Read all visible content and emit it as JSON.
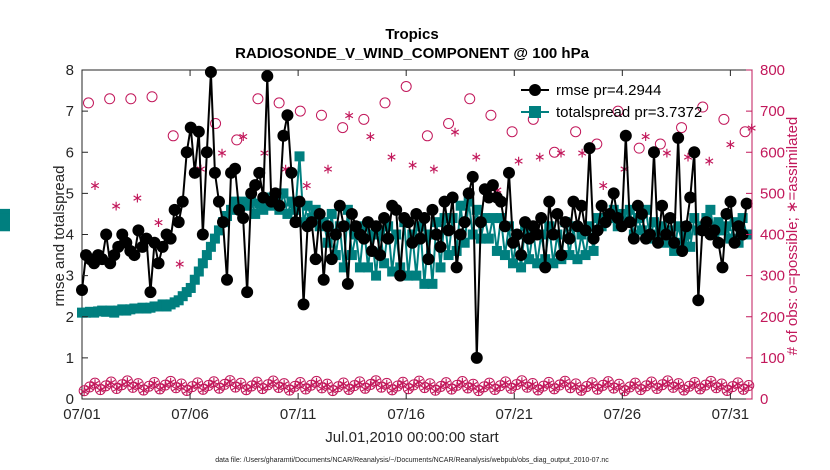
{
  "chart_data": {
    "type": "line",
    "title": "Tropics",
    "subtitle": "RADIOSONDE_V_WIND_COMPONENT @ 100 hPa",
    "xlabel": "Jul.01,2010 00:00:00 start",
    "ylabel": "rmse and totalspread",
    "y2label": "# of obs: o=possible; ∗=assimilated",
    "xlim": [
      0,
      31
    ],
    "ylim": [
      0,
      8
    ],
    "y2lim": [
      0,
      800
    ],
    "xticks": [
      0,
      5,
      10,
      15,
      20,
      25,
      30
    ],
    "xtick_labels": [
      "07/01",
      "07/06",
      "07/11",
      "07/16",
      "07/21",
      "07/26",
      "07/31"
    ],
    "yticks": [
      0,
      1,
      2,
      3,
      4,
      5,
      6,
      7,
      8
    ],
    "y2ticks": [
      0,
      100,
      200,
      300,
      400,
      500,
      600,
      700,
      800
    ],
    "footer": "data file: /Users/gharamti/Documents/NCAR/Reanalysis/~/Documents/NCAR/Reanalysis/webpub/obs_diag_output_2010-07.nc",
    "legend": [
      "rmse pr=4.2944",
      "totalspread pr=3.7372"
    ],
    "colors": {
      "rmse": "#000000",
      "spread": "#007f7f",
      "obs": "#c2185b"
    },
    "rmse": [
      2.65,
      3.5,
      3.4,
      3.3,
      3.5,
      3.4,
      4.0,
      3.3,
      3.5,
      3.7,
      4.0,
      3.8,
      3.6,
      3.5,
      4.1,
      3.7,
      3.9,
      2.6,
      3.8,
      3.3,
      3.7,
      4.0,
      3.9,
      4.6,
      4.3,
      4.8,
      6.0,
      6.6,
      5.5,
      6.5,
      4.0,
      6.0,
      7.95,
      5.5,
      4.8,
      4.3,
      2.9,
      5.5,
      5.6,
      4.6,
      4.4,
      2.6,
      5.0,
      5.2,
      5.5,
      4.9,
      7.85,
      4.8,
      5.0,
      4.7,
      6.4,
      6.9,
      5.5,
      4.3,
      4.8,
      2.3,
      4.2,
      4.3,
      3.4,
      4.5,
      2.9,
      4.2,
      3.4,
      4.0,
      4.7,
      4.2,
      2.8,
      4.5,
      4.2,
      4.0,
      3.9,
      4.3,
      3.6,
      4.2,
      3.5,
      4.4,
      3.9,
      4.7,
      4.6,
      3.0,
      4.4,
      4.3,
      3.8,
      4.5,
      3.9,
      4.4,
      3.4,
      4.6,
      4.0,
      3.7,
      4.8,
      4.1,
      4.9,
      3.2,
      4.0,
      4.3,
      5.0,
      5.4,
      1.0,
      4.3,
      5.1,
      4.9,
      5.2,
      4.9,
      4.8,
      4.2,
      5.5,
      3.8,
      4.0,
      3.5,
      4.3,
      3.9,
      4.2,
      4.0,
      4.4,
      3.2,
      4.8,
      4.0,
      4.5,
      3.5,
      4.3,
      3.9,
      4.8,
      4.2,
      4.7,
      4.1,
      6.1,
      3.9,
      4.1,
      4.7,
      4.3,
      4.5,
      5.0,
      4.4,
      4.2,
      6.4,
      4.3,
      3.9,
      4.7,
      4.5,
      3.9,
      4.0,
      6.0,
      3.8,
      4.7,
      4.0,
      4.4,
      3.8,
      6.35,
      3.6,
      4.2,
      4.9,
      6.0,
      2.4,
      4.1,
      4.3,
      4.0,
      4.1,
      3.8,
      3.2,
      4.5,
      4.8,
      3.8,
      4.2,
      4.0,
      4.75
    ],
    "spread": [
      2.1,
      2.1,
      2.12,
      2.1,
      2.13,
      2.15,
      2.12,
      2.15,
      2.1,
      2.15,
      2.18,
      2.15,
      2.18,
      2.2,
      2.2,
      2.22,
      2.2,
      2.22,
      2.25,
      2.25,
      2.3,
      2.25,
      2.3,
      2.35,
      2.4,
      2.5,
      2.6,
      2.7,
      2.9,
      3.1,
      3.3,
      3.5,
      3.7,
      3.9,
      4.1,
      4.3,
      4.45,
      4.6,
      4.8,
      4.6,
      4.8,
      4.7,
      4.8,
      4.5,
      4.75,
      4.6,
      4.9,
      4.7,
      4.9,
      4.6,
      5.0,
      4.5,
      4.8,
      4.6,
      5.9,
      4.3,
      4.7,
      4.4,
      4.6,
      4.2,
      4.3,
      3.8,
      4.5,
      3.5,
      4.2,
      3.2,
      4.6,
      3.5,
      4.0,
      3.2,
      4.2,
      3.2,
      4.0,
      3.0,
      4.1,
      3.3,
      4.2,
      3.1,
      4.0,
      3.2,
      4.3,
      3.0,
      4.0,
      3.0,
      4.2,
      2.8,
      4.0,
      2.8,
      4.3,
      3.2,
      4.4,
      3.5,
      4.4,
      3.6,
      4.7,
      3.8,
      4.8,
      4.0,
      4.6,
      3.9,
      4.4,
      3.9,
      4.4,
      3.6,
      4.4,
      3.5,
      4.2,
      3.3,
      4.0,
      3.2,
      4.2,
      3.4,
      4.1,
      3.3,
      4.0,
      3.4,
      4.2,
      3.3,
      4.0,
      3.4,
      4.3,
      3.5,
      4.2,
      3.4,
      4.0,
      3.5,
      4.2,
      3.6,
      4.4,
      4.2,
      4.4,
      4.4,
      4.6,
      4.2,
      4.5,
      4.3,
      4.6,
      4.0,
      4.4,
      4.1,
      4.6,
      3.9,
      4.3,
      4.0,
      4.2,
      3.8,
      4.1,
      3.6,
      4.2,
      3.8,
      4.0,
      3.7,
      4.4,
      4.1,
      4.2,
      4.4,
      4.6,
      4.0,
      4.3,
      4.1,
      4.2,
      3.9,
      4.3,
      3.8,
      4.4,
      4.0,
      4.5,
      4.2,
      4.5,
      4.4
    ],
    "obs_possible_count": 124,
    "obs_assimilated_count": 124
  }
}
